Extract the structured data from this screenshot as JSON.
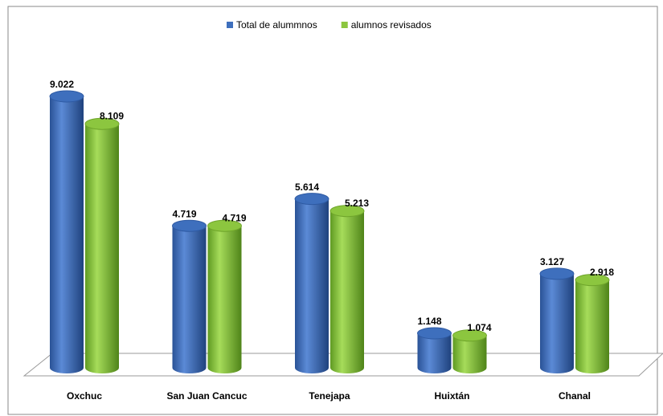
{
  "chart_data": {
    "type": "bar3d",
    "categories": [
      "Oxchuc",
      "San Juan Cancuc",
      "Tenejapa",
      "Huixtán",
      "Chanal"
    ],
    "series": [
      {
        "name": "Total de alummnos",
        "color": "#3e6fbd",
        "values": [
          9022,
          4719,
          5614,
          1148,
          3127
        ],
        "value_labels": [
          "9.022",
          "4.719",
          "5.614",
          "1.148",
          "3.127"
        ]
      },
      {
        "name": "alumnos revisados",
        "color": "#8cc63f",
        "values": [
          8109,
          4719,
          5213,
          1074,
          2918
        ],
        "value_labels": [
          "8.109",
          "4.719",
          "5.213",
          "1.074",
          "2.918"
        ]
      }
    ],
    "legend": "top"
  }
}
